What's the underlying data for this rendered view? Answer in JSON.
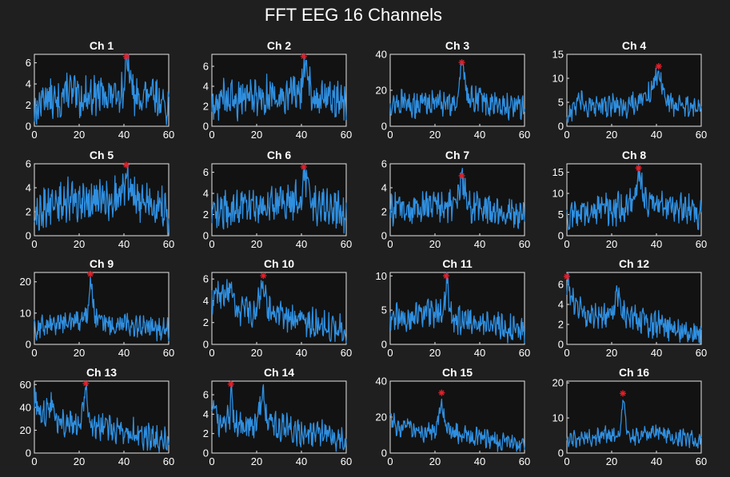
{
  "figure": {
    "title": "FFT EEG 16 Channels",
    "background": "#1f1f1f",
    "axes_background": "#121212"
  },
  "colors": {
    "series": "#2f8fe0",
    "peak_marker": "#e0202a",
    "text": "#ffffff"
  },
  "chart_data": [
    {
      "type": "line",
      "title": "Ch 1",
      "xlim": [
        0,
        60
      ],
      "ylim": [
        0,
        6.8
      ],
      "xticks": [
        0,
        20,
        40,
        60
      ],
      "yticks": [
        0,
        2,
        4,
        6
      ],
      "peak": [
        41,
        6.6
      ],
      "anchors": [
        [
          0,
          1.2
        ],
        [
          5,
          3
        ],
        [
          10,
          2
        ],
        [
          15,
          3.5
        ],
        [
          20,
          2.5
        ],
        [
          25,
          3
        ],
        [
          30,
          3
        ],
        [
          35,
          3
        ],
        [
          40,
          3.5
        ],
        [
          41,
          6.2
        ],
        [
          45,
          2.5
        ],
        [
          50,
          3
        ],
        [
          55,
          2.5
        ],
        [
          60,
          2
        ]
      ],
      "amp": 1.5
    },
    {
      "type": "line",
      "title": "Ch 2",
      "xlim": [
        0,
        60
      ],
      "ylim": [
        0,
        7.2
      ],
      "xticks": [
        0,
        20,
        40,
        60
      ],
      "yticks": [
        0,
        2,
        4,
        6
      ],
      "peak": [
        41,
        7.0
      ],
      "anchors": [
        [
          0,
          1.5
        ],
        [
          5,
          3
        ],
        [
          10,
          2.5
        ],
        [
          15,
          3.2
        ],
        [
          20,
          3
        ],
        [
          25,
          3.2
        ],
        [
          30,
          3.2
        ],
        [
          35,
          3
        ],
        [
          40,
          3.5
        ],
        [
          41,
          6.5
        ],
        [
          45,
          2.8
        ],
        [
          50,
          3
        ],
        [
          55,
          2.8
        ],
        [
          60,
          2
        ]
      ],
      "amp": 1.6
    },
    {
      "type": "line",
      "title": "Ch 3",
      "xlim": [
        0,
        60
      ],
      "ylim": [
        0,
        40
      ],
      "xticks": [
        0,
        20,
        40,
        60
      ],
      "yticks": [
        0,
        20,
        40
      ],
      "peak": [
        32,
        35.5
      ],
      "anchors": [
        [
          0,
          12
        ],
        [
          5,
          13
        ],
        [
          10,
          12
        ],
        [
          15,
          13
        ],
        [
          20,
          14
        ],
        [
          25,
          13
        ],
        [
          30,
          14
        ],
        [
          32,
          33
        ],
        [
          35,
          14
        ],
        [
          40,
          15
        ],
        [
          45,
          12
        ],
        [
          50,
          12
        ],
        [
          55,
          11
        ],
        [
          60,
          10
        ]
      ],
      "amp": 6
    },
    {
      "type": "line",
      "title": "Ch 4",
      "xlim": [
        0,
        60
      ],
      "ylim": [
        0,
        15
      ],
      "xticks": [
        0,
        20,
        40,
        60
      ],
      "yticks": [
        0,
        5,
        10,
        15
      ],
      "peak": [
        41,
        12.5
      ],
      "anchors": [
        [
          0,
          2
        ],
        [
          5,
          5
        ],
        [
          10,
          4
        ],
        [
          15,
          4
        ],
        [
          20,
          4.5
        ],
        [
          25,
          4
        ],
        [
          30,
          5
        ],
        [
          35,
          5.5
        ],
        [
          38,
          8
        ],
        [
          41,
          11.5
        ],
        [
          45,
          5
        ],
        [
          50,
          4.5
        ],
        [
          55,
          4
        ],
        [
          60,
          3
        ]
      ],
      "amp": 2
    },
    {
      "type": "line",
      "title": "Ch 5",
      "xlim": [
        0,
        60
      ],
      "ylim": [
        0,
        6
      ],
      "xticks": [
        0,
        20,
        40,
        60
      ],
      "yticks": [
        0,
        2,
        4,
        6
      ],
      "peak": [
        41,
        5.9
      ],
      "anchors": [
        [
          0,
          1.5
        ],
        [
          5,
          2.5
        ],
        [
          10,
          2.5
        ],
        [
          15,
          3
        ],
        [
          20,
          2.8
        ],
        [
          25,
          3
        ],
        [
          30,
          3
        ],
        [
          35,
          3
        ],
        [
          40,
          3.5
        ],
        [
          41,
          5.5
        ],
        [
          45,
          3
        ],
        [
          50,
          2.8
        ],
        [
          55,
          2.5
        ],
        [
          60,
          1.8
        ]
      ],
      "amp": 1.4
    },
    {
      "type": "line",
      "title": "Ch 6",
      "xlim": [
        0,
        60
      ],
      "ylim": [
        0,
        6.8
      ],
      "xticks": [
        0,
        20,
        40,
        60
      ],
      "yticks": [
        0,
        2,
        4,
        6
      ],
      "peak": [
        41,
        6.5
      ],
      "anchors": [
        [
          0,
          1.5
        ],
        [
          5,
          2.5
        ],
        [
          10,
          2.5
        ],
        [
          15,
          3
        ],
        [
          20,
          2.8
        ],
        [
          25,
          3
        ],
        [
          30,
          3
        ],
        [
          35,
          3
        ],
        [
          40,
          3.5
        ],
        [
          41,
          6
        ],
        [
          45,
          3
        ],
        [
          50,
          2.8
        ],
        [
          55,
          2.5
        ],
        [
          60,
          1.8
        ]
      ],
      "amp": 1.5
    },
    {
      "type": "line",
      "title": "Ch 7",
      "xlim": [
        0,
        60
      ],
      "ylim": [
        0,
        6
      ],
      "xticks": [
        0,
        20,
        40,
        60
      ],
      "yticks": [
        0,
        2,
        4,
        6
      ],
      "peak": [
        32,
        5.0
      ],
      "anchors": [
        [
          0,
          2
        ],
        [
          5,
          2.5
        ],
        [
          10,
          2
        ],
        [
          15,
          2.5
        ],
        [
          20,
          2.5
        ],
        [
          25,
          2.5
        ],
        [
          30,
          2.8
        ],
        [
          32,
          4.8
        ],
        [
          35,
          2.5
        ],
        [
          40,
          2.5
        ],
        [
          45,
          2
        ],
        [
          50,
          2
        ],
        [
          55,
          1.8
        ],
        [
          60,
          1.5
        ]
      ],
      "amp": 1.1
    },
    {
      "type": "line",
      "title": "Ch 8",
      "xlim": [
        0,
        60
      ],
      "ylim": [
        0,
        17
      ],
      "xticks": [
        0,
        20,
        40,
        60
      ],
      "yticks": [
        0,
        5,
        10,
        15
      ],
      "peak": [
        32,
        16
      ],
      "anchors": [
        [
          0,
          4
        ],
        [
          5,
          6
        ],
        [
          10,
          5
        ],
        [
          15,
          7
        ],
        [
          20,
          6
        ],
        [
          25,
          7
        ],
        [
          30,
          8
        ],
        [
          32,
          15
        ],
        [
          35,
          8
        ],
        [
          40,
          8
        ],
        [
          45,
          7
        ],
        [
          50,
          7
        ],
        [
          55,
          6
        ],
        [
          60,
          5
        ]
      ],
      "amp": 3
    },
    {
      "type": "line",
      "title": "Ch 9",
      "xlim": [
        0,
        60
      ],
      "ylim": [
        0,
        23
      ],
      "xticks": [
        0,
        20,
        40,
        60
      ],
      "yticks": [
        0,
        10,
        20
      ],
      "peak": [
        25,
        22.5
      ],
      "anchors": [
        [
          0,
          5
        ],
        [
          5,
          6
        ],
        [
          10,
          7
        ],
        [
          15,
          7
        ],
        [
          20,
          8
        ],
        [
          24,
          10
        ],
        [
          25,
          21
        ],
        [
          27,
          8
        ],
        [
          30,
          7
        ],
        [
          35,
          6
        ],
        [
          40,
          7
        ],
        [
          45,
          6
        ],
        [
          50,
          6
        ],
        [
          55,
          5
        ],
        [
          60,
          5
        ]
      ],
      "amp": 3
    },
    {
      "type": "line",
      "title": "Ch 10",
      "xlim": [
        0,
        60
      ],
      "ylim": [
        0,
        6.6
      ],
      "xticks": [
        0,
        20,
        40,
        60
      ],
      "yticks": [
        0,
        2,
        4,
        6
      ],
      "peak": [
        23,
        6.3
      ],
      "anchors": [
        [
          0,
          4
        ],
        [
          3,
          5
        ],
        [
          5,
          4
        ],
        [
          8,
          5.5
        ],
        [
          10,
          3.5
        ],
        [
          15,
          3
        ],
        [
          20,
          3
        ],
        [
          23,
          6
        ],
        [
          25,
          3
        ],
        [
          30,
          2.8
        ],
        [
          35,
          2.5
        ],
        [
          40,
          2.2
        ],
        [
          45,
          2
        ],
        [
          50,
          1.8
        ],
        [
          55,
          1.5
        ],
        [
          60,
          1.2
        ]
      ],
      "amp": 1.1
    },
    {
      "type": "line",
      "title": "Ch 11",
      "xlim": [
        0,
        60
      ],
      "ylim": [
        0,
        10.5
      ],
      "xticks": [
        0,
        20,
        40,
        60
      ],
      "yticks": [
        0,
        5,
        10
      ],
      "peak": [
        25,
        10
      ],
      "anchors": [
        [
          0,
          3.5
        ],
        [
          5,
          4
        ],
        [
          10,
          4
        ],
        [
          15,
          4.5
        ],
        [
          20,
          4.5
        ],
        [
          24,
          5
        ],
        [
          25,
          9.5
        ],
        [
          27,
          4
        ],
        [
          30,
          3.5
        ],
        [
          35,
          3.5
        ],
        [
          40,
          3
        ],
        [
          45,
          3
        ],
        [
          50,
          2.5
        ],
        [
          55,
          2.2
        ],
        [
          60,
          2
        ]
      ],
      "amp": 1.8
    },
    {
      "type": "line",
      "title": "Ch 12",
      "xlim": [
        0,
        60
      ],
      "ylim": [
        0,
        7.2
      ],
      "xticks": [
        0,
        20,
        40,
        60
      ],
      "yticks": [
        0,
        2,
        4,
        6
      ],
      "peak": [
        0,
        6.8
      ],
      "anchors": [
        [
          0,
          6.5
        ],
        [
          2,
          4.5
        ],
        [
          5,
          3.5
        ],
        [
          10,
          3
        ],
        [
          15,
          3
        ],
        [
          20,
          2.8
        ],
        [
          23,
          5.5
        ],
        [
          25,
          3
        ],
        [
          30,
          2.5
        ],
        [
          35,
          2.2
        ],
        [
          40,
          2
        ],
        [
          45,
          1.8
        ],
        [
          50,
          1.5
        ],
        [
          55,
          1.2
        ],
        [
          60,
          1
        ]
      ],
      "amp": 1.1
    },
    {
      "type": "line",
      "title": "Ch 13",
      "xlim": [
        0,
        60
      ],
      "ylim": [
        0,
        63
      ],
      "xticks": [
        0,
        20,
        40,
        60
      ],
      "yticks": [
        0,
        20,
        40,
        60
      ],
      "peak": [
        23,
        61
      ],
      "anchors": [
        [
          0,
          50
        ],
        [
          3,
          30
        ],
        [
          5,
          35
        ],
        [
          8,
          45
        ],
        [
          10,
          28
        ],
        [
          15,
          25
        ],
        [
          20,
          25
        ],
        [
          23,
          55
        ],
        [
          25,
          25
        ],
        [
          30,
          22
        ],
        [
          35,
          22
        ],
        [
          40,
          20
        ],
        [
          45,
          18
        ],
        [
          50,
          15
        ],
        [
          55,
          12
        ],
        [
          60,
          10
        ]
      ],
      "amp": 10
    },
    {
      "type": "line",
      "title": "Ch 14",
      "xlim": [
        0,
        60
      ],
      "ylim": [
        0,
        7.4
      ],
      "xticks": [
        0,
        20,
        40,
        60
      ],
      "yticks": [
        0,
        2,
        4,
        6
      ],
      "peak": [
        8.5,
        7.1
      ],
      "anchors": [
        [
          0,
          5
        ],
        [
          3,
          3
        ],
        [
          5,
          3
        ],
        [
          8,
          4
        ],
        [
          8.5,
          6.8
        ],
        [
          10,
          3
        ],
        [
          15,
          3
        ],
        [
          20,
          3
        ],
        [
          23,
          6.5
        ],
        [
          25,
          3
        ],
        [
          30,
          2.8
        ],
        [
          35,
          2.5
        ],
        [
          40,
          2.2
        ],
        [
          45,
          2
        ],
        [
          50,
          1.8
        ],
        [
          55,
          1.5
        ],
        [
          60,
          1.2
        ]
      ],
      "amp": 1.2
    },
    {
      "type": "line",
      "title": "Ch 15",
      "xlim": [
        0,
        60
      ],
      "ylim": [
        0,
        40
      ],
      "xticks": [
        0,
        20,
        40,
        60
      ],
      "yticks": [
        0,
        20,
        40
      ],
      "peak": [
        23,
        33.5
      ],
      "anchors": [
        [
          0,
          22
        ],
        [
          3,
          15
        ],
        [
          5,
          14
        ],
        [
          8,
          18
        ],
        [
          10,
          12
        ],
        [
          15,
          12
        ],
        [
          20,
          12
        ],
        [
          23,
          28
        ],
        [
          25,
          14
        ],
        [
          30,
          11
        ],
        [
          35,
          10
        ],
        [
          40,
          9
        ],
        [
          45,
          8
        ],
        [
          50,
          6
        ],
        [
          55,
          5
        ],
        [
          60,
          4
        ]
      ],
      "amp": 4.5
    },
    {
      "type": "line",
      "title": "Ch 16",
      "xlim": [
        0,
        60
      ],
      "ylim": [
        0,
        20.5
      ],
      "xticks": [
        0,
        20,
        40,
        60
      ],
      "yticks": [
        0,
        10,
        20
      ],
      "peak": [
        25,
        17
      ],
      "anchors": [
        [
          0,
          4
        ],
        [
          5,
          4
        ],
        [
          10,
          4.5
        ],
        [
          15,
          5
        ],
        [
          20,
          5
        ],
        [
          24,
          6
        ],
        [
          25,
          16
        ],
        [
          27,
          5
        ],
        [
          30,
          4.5
        ],
        [
          35,
          5
        ],
        [
          40,
          6
        ],
        [
          45,
          5
        ],
        [
          50,
          4.5
        ],
        [
          55,
          4
        ],
        [
          60,
          3.5
        ]
      ],
      "amp": 2
    }
  ]
}
